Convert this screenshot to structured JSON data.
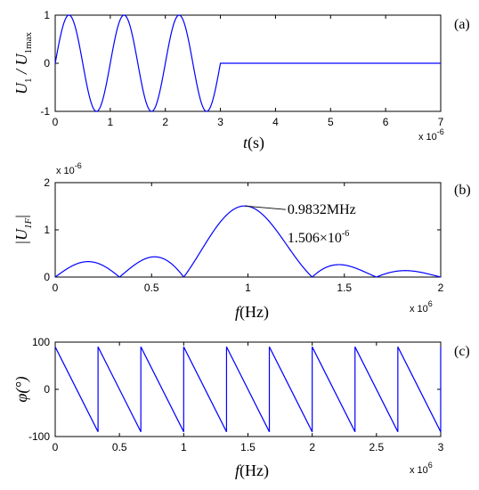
{
  "chart_data": [
    {
      "type": "line",
      "panel_label": "(a)",
      "ylabel": {
        "main": "U",
        "sub1": "1",
        "sep": " / U",
        "sub2": "1max"
      },
      "xlabel": {
        "var": "t",
        "unit": "(s)"
      },
      "x_multiplier": {
        "base": "x 10",
        "exp": "-6"
      },
      "xlim": [
        0,
        7
      ],
      "ylim": [
        -1,
        1
      ],
      "xticks": [
        "0",
        "1",
        "2",
        "3",
        "4",
        "5",
        "6",
        "7"
      ],
      "yticks": [
        "-1",
        "0",
        "1"
      ],
      "grid": false,
      "series": [
        {
          "color": "#0000ff",
          "description_points": {
            "x": [
              0,
              0.25,
              0.5,
              0.75,
              1.0,
              1.25,
              1.5,
              1.75,
              2.0,
              2.25,
              2.5,
              2.75,
              3.0,
              3.0,
              7.0
            ],
            "y": [
              0,
              1,
              0,
              -1,
              0,
              1,
              0,
              -1,
              0,
              1,
              0,
              -1,
              0,
              0,
              0
            ]
          }
        }
      ]
    },
    {
      "type": "line",
      "panel_label": "(b)",
      "ylabel": {
        "main": "|U",
        "sub": "1F",
        "end": "|"
      },
      "xlabel": {
        "var": "f",
        "unit": "(Hz)"
      },
      "x_multiplier": {
        "base": "x 10",
        "exp": "6"
      },
      "y_multiplier": {
        "base": "x 10",
        "exp": "-6"
      },
      "xlim": [
        0,
        2
      ],
      "ylim": [
        0,
        2
      ],
      "xticks": [
        "0",
        "0.5",
        "1",
        "1.5",
        "2"
      ],
      "yticks": [
        "0",
        "1",
        "2"
      ],
      "grid": false,
      "annotation": {
        "line1": "0.9832MHz",
        "line2_base": "1.506×10",
        "line2_exp": "-6",
        "x": 0.9832,
        "y": 1.506
      },
      "series": [
        {
          "color": "#0000ff",
          "description_points": {
            "x": [
              0,
              0.1667,
              0.3333,
              0.5,
              0.6667,
              0.9832,
              1.3333,
              1.5,
              1.6667,
              1.8333,
              2.0
            ],
            "y": [
              0,
              0.33,
              0,
              0.43,
              0,
              1.506,
              0,
              0.27,
              0,
              0.15,
              0
            ]
          }
        }
      ]
    },
    {
      "type": "line",
      "panel_label": "(c)",
      "ylabel": {
        "main": "φ(°)"
      },
      "xlabel": {
        "var": "f",
        "unit": "(Hz)"
      },
      "x_multiplier": {
        "base": "x 10",
        "exp": "6"
      },
      "xlim": [
        0,
        3
      ],
      "ylim": [
        -100,
        100
      ],
      "xticks": [
        "0",
        "0.5",
        "1",
        "1.5",
        "2",
        "2.5",
        "3"
      ],
      "yticks": [
        "-100",
        "0",
        "100"
      ],
      "grid": false,
      "series": [
        {
          "color": "#0000ff",
          "sawtooth_period": 0.3333,
          "high": 90,
          "low": -90
        }
      ]
    }
  ]
}
